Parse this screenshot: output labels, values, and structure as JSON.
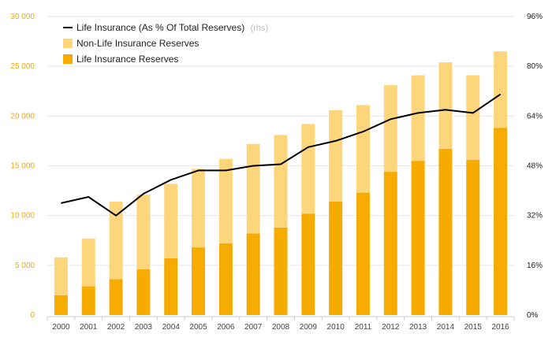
{
  "chart_data": {
    "type": "bar",
    "stacked": true,
    "categories": [
      "2000",
      "2001",
      "2002",
      "2003",
      "2004",
      "2005",
      "2006",
      "2007",
      "2008",
      "2009",
      "2010",
      "2011",
      "2012",
      "2013",
      "2014",
      "2015",
      "2016"
    ],
    "series": [
      {
        "name": "Life Insurance Reserves",
        "kind": "bar",
        "axis": "left",
        "color": "#f5ab00",
        "values": [
          2000,
          2900,
          3600,
          4600,
          5700,
          6800,
          7200,
          8200,
          8800,
          10200,
          11400,
          12300,
          14400,
          15500,
          16700,
          15600,
          18800
        ]
      },
      {
        "name": "Non-Life Insurance Reserves",
        "kind": "bar",
        "axis": "left",
        "color": "#fdd67c",
        "values": [
          3800,
          4800,
          7800,
          7500,
          7500,
          7900,
          8500,
          9000,
          9300,
          9000,
          9200,
          8800,
          8700,
          8600,
          8700,
          8500,
          7700
        ]
      },
      {
        "name": "Life Insurance (As % Of Total Reserves)",
        "suffix": "(rhs)",
        "kind": "line",
        "axis": "right",
        "color": "#000000",
        "values": [
          36,
          38,
          32,
          39,
          43.5,
          46.5,
          46.5,
          48,
          48.5,
          54,
          56,
          59,
          63,
          65,
          66,
          65,
          71
        ]
      }
    ],
    "y_left": {
      "min": 0,
      "max": 30000,
      "ticks": [
        0,
        5000,
        10000,
        15000,
        20000,
        25000,
        30000
      ],
      "tick_labels": [
        "0",
        "5 000",
        "10 000",
        "15 000",
        "20 000",
        "25 000",
        "30 000"
      ]
    },
    "y_right": {
      "min": 0,
      "max": 96,
      "ticks": [
        0,
        16,
        32,
        48,
        64,
        80,
        96
      ],
      "tick_labels": [
        "0%",
        "16%",
        "32%",
        "48%",
        "64%",
        "80%",
        "96%"
      ]
    },
    "grid": true,
    "legend_position": "top-left",
    "colors": {
      "left_axis": "#f5a800",
      "grid": "#e6e6e6"
    }
  }
}
